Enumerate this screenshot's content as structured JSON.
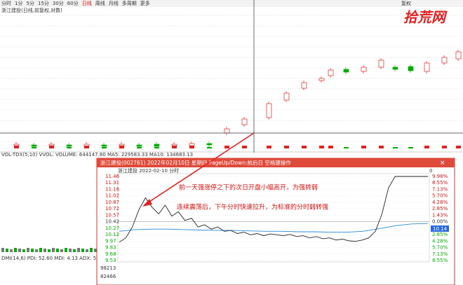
{
  "toolbar": {
    "tabs": [
      "分时",
      "1分",
      "5分",
      "15分",
      "30分",
      "60分",
      "日线",
      "周线",
      "月线",
      "多周期",
      "更多"
    ],
    "right": "复权"
  },
  "stock_label": "浙江建投(日线,前复权,对数)",
  "watermark": "拾荒网",
  "volume_indicator": "VOL-TDX(5,10)  VVOL:  VOLUME: 644147.80  MA5: 229583.33  MA10: 134683.13",
  "dmi_indicator": "DMI(14,6)  PDI: 52.60  MDI: 4.13  ADX: 51.36  ADXR: 4",
  "popup": {
    "title": "浙江建投(002761) 2022年02月10日 星期四 PageUp/Down:前后日 空格键操作",
    "subtitle": "浙江建投  2022-02-10  分时",
    "corner": "0",
    "annotations": [
      "前一天强涨停之下的次日开盘小幅高开，为强转弱",
      "连续震荡后，下午分时快速拉升，为标准的分时弱转强"
    ],
    "current_price": "10.14",
    "price_range": [
      9.53,
      11.46
    ],
    "price_ticks": [
      11.46,
      11.31,
      11.16,
      11.02,
      10.87,
      10.72,
      10.57,
      10.42,
      10.27,
      10.12,
      9.97,
      9.83,
      9.68,
      9.53
    ],
    "pct_ticks": [
      "9.98%",
      "8.55%",
      "7.13%",
      "5.70%",
      "4.28%",
      "2.85%",
      "1.43%",
      "0.00%",
      "1.43%",
      "2.85%",
      "4.28%",
      "5.70%",
      "7.13%",
      "8.55%"
    ],
    "volume_ticks": [
      "98213",
      "82466"
    ],
    "price_line": [
      9.95,
      10.05,
      10.3,
      10.7,
      10.97,
      10.75,
      10.6,
      10.8,
      10.55,
      10.65,
      10.45,
      10.5,
      10.3,
      10.35,
      10.25,
      10.3,
      10.2,
      10.22,
      10.15,
      10.18,
      10.12,
      10.15,
      10.1,
      10.14,
      10.12,
      10.1,
      10.13,
      10.08,
      10.1,
      10.05,
      10.08,
      10.03,
      10.05,
      10.0,
      10.02,
      9.98,
      9.97,
      10.0,
      10.05,
      10.2,
      10.6,
      11.2,
      11.46,
      11.46,
      11.46,
      11.46,
      11.46,
      11.46
    ],
    "avg_line": [
      10.2,
      10.24,
      10.25,
      10.25,
      10.24,
      10.23,
      10.22,
      10.22,
      10.21,
      10.2,
      10.2,
      10.19,
      10.19,
      10.18,
      10.18,
      10.2,
      10.26,
      10.33,
      10.37,
      10.38
    ]
  }
}
